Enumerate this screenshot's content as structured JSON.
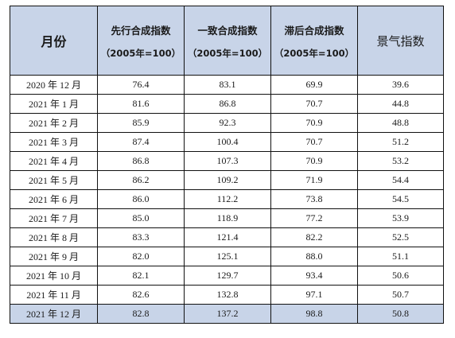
{
  "headers": {
    "month": "月份",
    "leading": "先行合成指数",
    "coincident": "一致合成指数",
    "lagging": "滞后合成指数",
    "base": "（2005年=100）",
    "climate": "景气指数"
  },
  "rows": [
    {
      "month": "2020 年 12 月",
      "leading": "76.4",
      "coincident": "83.1",
      "lagging": "69.9",
      "climate": "39.6"
    },
    {
      "month": "2021 年 1 月",
      "leading": "81.6",
      "coincident": "86.8",
      "lagging": "70.7",
      "climate": "44.8"
    },
    {
      "month": "2021 年 2 月",
      "leading": "85.9",
      "coincident": "92.3",
      "lagging": "70.9",
      "climate": "48.8"
    },
    {
      "month": "2021 年 3 月",
      "leading": "87.4",
      "coincident": "100.4",
      "lagging": "70.7",
      "climate": "51.2"
    },
    {
      "month": "2021 年 4 月",
      "leading": "86.8",
      "coincident": "107.3",
      "lagging": "70.9",
      "climate": "53.2"
    },
    {
      "month": "2021 年 5 月",
      "leading": "86.2",
      "coincident": "109.2",
      "lagging": "71.9",
      "climate": "54.4"
    },
    {
      "month": "2021 年 6 月",
      "leading": "86.0",
      "coincident": "112.2",
      "lagging": "73.8",
      "climate": "54.5"
    },
    {
      "month": "2021 年 7 月",
      "leading": "85.0",
      "coincident": "118.9",
      "lagging": "77.2",
      "climate": "53.9"
    },
    {
      "month": "2021 年 8 月",
      "leading": "83.3",
      "coincident": "121.4",
      "lagging": "82.2",
      "climate": "52.5"
    },
    {
      "month": "2021 年 9 月",
      "leading": "82.0",
      "coincident": "125.1",
      "lagging": "88.0",
      "climate": "51.1"
    },
    {
      "month": "2021 年 10 月",
      "leading": "82.1",
      "coincident": "129.7",
      "lagging": "93.4",
      "climate": "50.6"
    },
    {
      "month": "2021 年 11 月",
      "leading": "82.6",
      "coincident": "132.8",
      "lagging": "97.1",
      "climate": "50.7"
    },
    {
      "month": "2021 年 12 月",
      "leading": "82.8",
      "coincident": "137.2",
      "lagging": "98.8",
      "climate": "50.8"
    }
  ],
  "colors": {
    "header_bg": "#c8d4e8",
    "last_row_bg": "#c8d4e8",
    "border": "#111111"
  }
}
